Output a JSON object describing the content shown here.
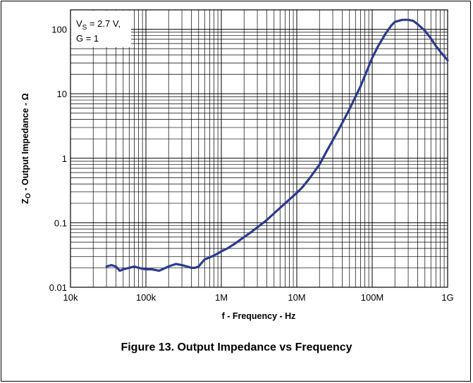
{
  "caption": "Figure 13. Output Impedance vs Frequency",
  "chart_data": {
    "type": "line",
    "x_scale": "log",
    "y_scale": "log",
    "xlim": [
      10000,
      1000000000
    ],
    "ylim": [
      0.01,
      200
    ],
    "grid": true,
    "xlabel": "f - Frequency - Hz",
    "ylabel": "Z_O - Output Impedance - Ω",
    "ylabel_parts": {
      "main": "Z",
      "sub": "O",
      "rest": " - Output Impedance - Ω"
    },
    "x_ticks": [
      {
        "value": 10000,
        "label": "10k"
      },
      {
        "value": 100000,
        "label": "100k"
      },
      {
        "value": 1000000,
        "label": "1M"
      },
      {
        "value": 10000000,
        "label": "10M"
      },
      {
        "value": 100000000,
        "label": "100M"
      },
      {
        "value": 1000000000,
        "label": "1G"
      }
    ],
    "y_ticks": [
      {
        "value": 0.01,
        "label": "0.01"
      },
      {
        "value": 0.1,
        "label": "0.1"
      },
      {
        "value": 1,
        "label": "1"
      },
      {
        "value": 10,
        "label": "10"
      },
      {
        "value": 100,
        "label": "100"
      }
    ],
    "annotation": {
      "line1": {
        "main": "V",
        "sub": "S",
        "rest": " = 2.7 V,"
      },
      "line2": "G = 1",
      "position": "top-left"
    },
    "series_color": "#2b3a8f",
    "series": [
      {
        "x": [
          30000,
          35000,
          40000,
          45000,
          50000,
          60000,
          70000,
          80000,
          100000,
          120000,
          150000,
          200000,
          250000,
          300000,
          350000,
          400000,
          450000,
          500000,
          550000,
          600000,
          700000,
          800000,
          1000000,
          1200000,
          1500000,
          2000000,
          2500000,
          3000000,
          4000000,
          5000000,
          6000000,
          8000000,
          10000000,
          12000000,
          15000000,
          20000000,
          25000000,
          30000000,
          40000000,
          50000000,
          60000000,
          70000000,
          80000000,
          100000000,
          120000000,
          150000000,
          180000000,
          200000000,
          250000000,
          300000000,
          350000000,
          400000000,
          500000000,
          600000000,
          700000000,
          800000000,
          1000000000
        ],
        "y": [
          0.021,
          0.022,
          0.021,
          0.018,
          0.019,
          0.02,
          0.021,
          0.02,
          0.019,
          0.019,
          0.018,
          0.021,
          0.023,
          0.022,
          0.021,
          0.02,
          0.02,
          0.021,
          0.024,
          0.027,
          0.029,
          0.031,
          0.036,
          0.04,
          0.047,
          0.06,
          0.072,
          0.085,
          0.11,
          0.14,
          0.17,
          0.23,
          0.29,
          0.36,
          0.5,
          0.8,
          1.3,
          1.9,
          3.5,
          5.8,
          9,
          13,
          19,
          36,
          55,
          85,
          115,
          130,
          140,
          140,
          135,
          120,
          95,
          72,
          55,
          45,
          33
        ]
      }
    ]
  }
}
